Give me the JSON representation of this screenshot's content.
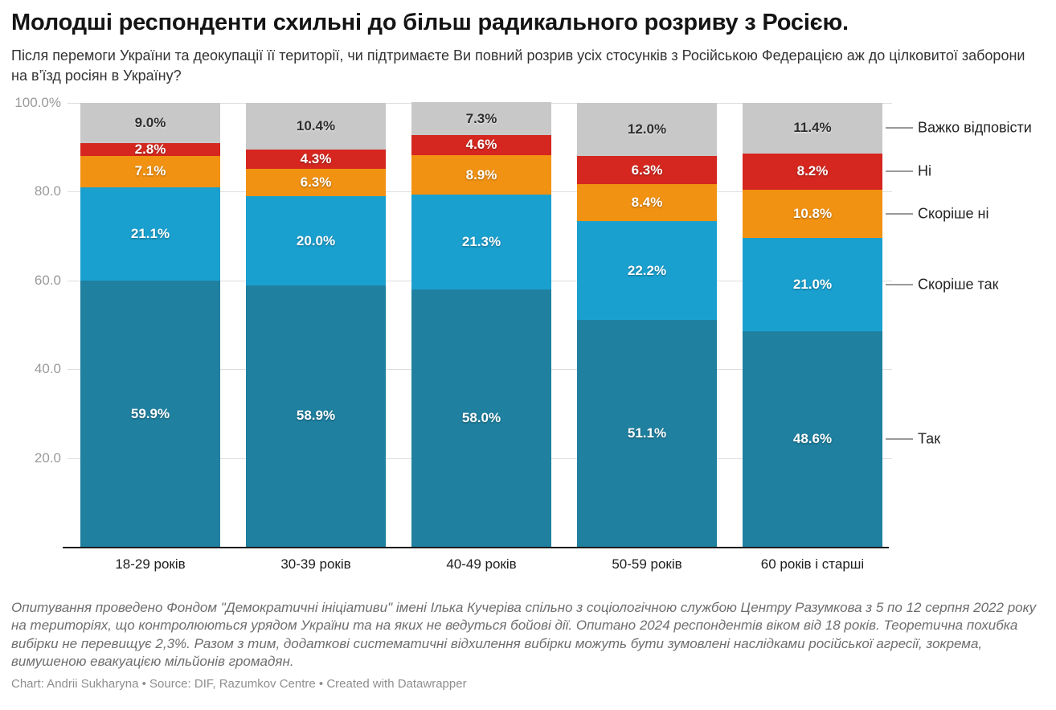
{
  "header": {
    "title": "Молодші респонденти схильні до більш радикального розриву з Росією.",
    "subtitle": "Після перемоги України та деокупації її території, чи підтримаєте Ви повний розрив усіх стосунків з Російською Федерацією аж до цілковитої заборони на в’їзд росіян в Україну?"
  },
  "chart_data": {
    "type": "bar",
    "stacked": true,
    "unit": "%",
    "title": "Молодші респонденти схильні до більш радикального розриву з Росією.",
    "categories": [
      "18-29 років",
      "30-39 років",
      "40-49 років",
      "50-59 років",
      "60 років і старші"
    ],
    "series": [
      {
        "name": "Так",
        "color": "#1f80a0",
        "label_color": "#ffffff",
        "values": [
          59.9,
          58.9,
          58.0,
          51.1,
          48.6
        ]
      },
      {
        "name": "Скоріше так",
        "color": "#1aa0cf",
        "label_color": "#ffffff",
        "values": [
          21.1,
          20.0,
          21.3,
          22.2,
          21.0
        ]
      },
      {
        "name": "Скоріше ні",
        "color": "#f29212",
        "label_color": "#ffffff",
        "values": [
          7.1,
          6.3,
          8.9,
          8.4,
          10.8
        ]
      },
      {
        "name": "Ні",
        "color": "#d5271f",
        "label_color": "#ffffff",
        "values": [
          2.8,
          4.3,
          4.6,
          6.3,
          8.2
        ]
      },
      {
        "name": "Важко відповісти",
        "color": "#c8c8c8",
        "label_color": "#2e2e2e",
        "values": [
          9.0,
          10.4,
          7.3,
          12.0,
          11.4
        ]
      }
    ],
    "y_axis": {
      "range": [
        0,
        100
      ],
      "ticks": [
        {
          "value": 100,
          "label": "100.0%"
        },
        {
          "value": 80,
          "label": "80.0"
        },
        {
          "value": 60,
          "label": "60.0"
        },
        {
          "value": 40,
          "label": "40.0"
        },
        {
          "value": 20,
          "label": "20.0"
        }
      ]
    },
    "grid": true,
    "legend_position": "right",
    "value_label_format": "0.0%"
  },
  "footer": {
    "notes": "Опитування проведено Фондом \"Демократичні ініціативи\" імені Ілька Кучеріва спільно з соціологічною службою Центру Разумкова з 5 по 12 серпня 2022 року на територіях, що контролюються урядом України та на яких не ведуться бойові дії. Опитано 2024 респондентів віком від 18 років. Теоретична похибка вибірки не перевищує 2,3%. Разом з тим, додаткові систематичні відхилення вибірки можуть бути зумовлені наслідками російської агресії, зокрема, вимушеною евакуацією мільйонів громадян.",
    "credit": "Chart: Andrii Sukharyna • Source: DIF, Razumkov Centre • Created with Datawrapper"
  }
}
